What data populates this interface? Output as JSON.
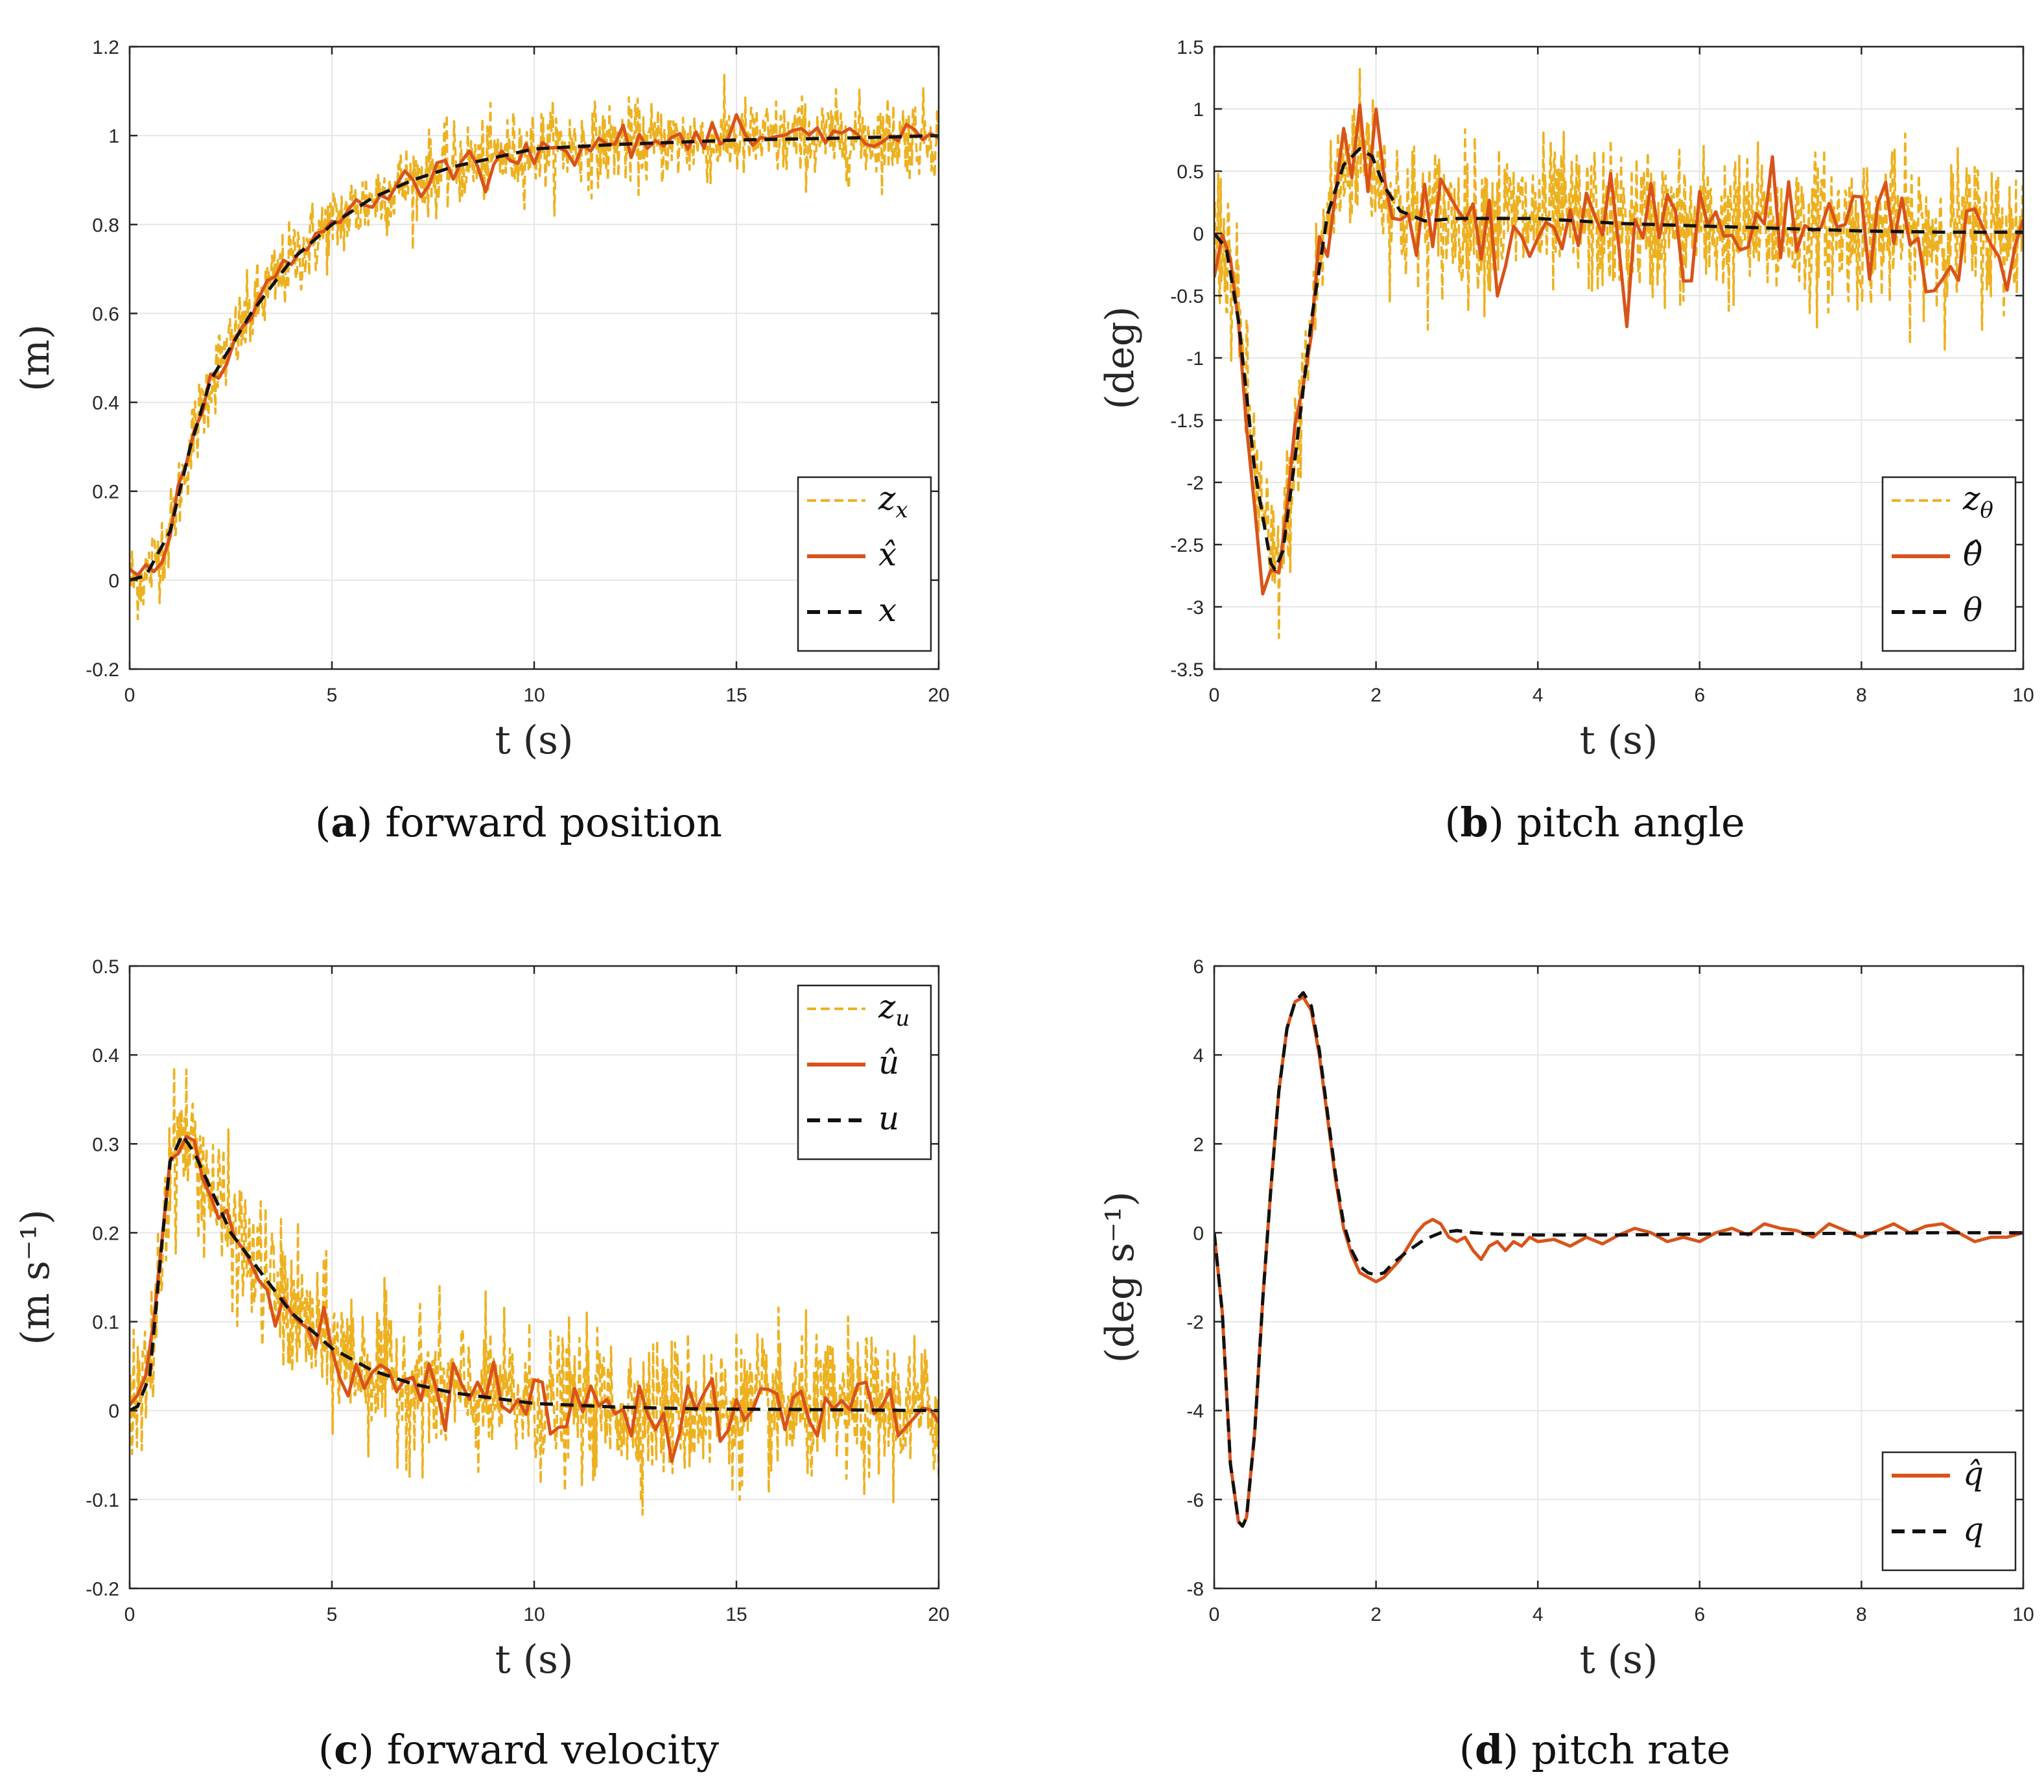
{
  "colors": {
    "measured": "#EDB120",
    "estimated": "#D95319",
    "true_state": "#111111",
    "grid": "#e6e6e6",
    "axes": "#262626"
  },
  "chart_data": [
    {
      "id": "a",
      "type": "line",
      "caption_letter": "a",
      "caption_text": "forward position",
      "xlabel": "t (s)",
      "ylabel": "(m)",
      "xlim": [
        0,
        20
      ],
      "ylim": [
        -0.2,
        1.2
      ],
      "xticks": [
        0,
        5,
        10,
        15,
        20
      ],
      "yticks": [
        -0.2,
        0,
        0.2,
        0.4,
        0.6,
        0.8,
        1,
        1.2
      ],
      "xtick_labels": [
        "0",
        "5",
        "10",
        "15",
        "20"
      ],
      "ytick_labels": [
        "-0.2",
        "0",
        "0.2",
        "0.4",
        "0.6",
        "0.8",
        "1",
        "1.2"
      ],
      "grid": true,
      "legend_position": "bottom-right",
      "legend": [
        "z_x",
        "x̂",
        "x"
      ],
      "legend_subscript": "x",
      "series": [
        {
          "name": "z_x",
          "style": "measured",
          "model": "x",
          "noise": 0.045,
          "dt": 0.02
        },
        {
          "name": "x̂",
          "style": "estimated",
          "model": "x",
          "noise": 0.018,
          "dt": 0.2
        },
        {
          "name": "x",
          "style": "true",
          "model": "x",
          "x": [
            0,
            0.4,
            1,
            1.5,
            2,
            3,
            4,
            5,
            6,
            7,
            8,
            10,
            12,
            15,
            18,
            20
          ],
          "values": [
            0,
            0.01,
            0.11,
            0.3,
            0.45,
            0.6,
            0.72,
            0.8,
            0.86,
            0.9,
            0.93,
            0.97,
            0.98,
            0.99,
            0.995,
            1.0
          ]
        }
      ]
    },
    {
      "id": "b",
      "type": "line",
      "caption_letter": "b",
      "caption_text": "pitch angle",
      "xlabel": "t (s)",
      "ylabel": "(deg)",
      "xlim": [
        0,
        10
      ],
      "ylim": [
        -3.5,
        1.5
      ],
      "xticks": [
        0,
        2,
        4,
        6,
        8,
        10
      ],
      "yticks": [
        -3.5,
        -3,
        -2.5,
        -2,
        -1.5,
        -1,
        -0.5,
        0,
        0.5,
        1,
        1.5
      ],
      "xtick_labels": [
        "0",
        "2",
        "4",
        "6",
        "8",
        "10"
      ],
      "ytick_labels": [
        "-3.5",
        "-3",
        "-2.5",
        "-2",
        "-1.5",
        "-1",
        "-0.5",
        "0",
        "0.5",
        "1",
        "1.5"
      ],
      "grid": true,
      "legend_position": "bottom-right",
      "legend": [
        "z_θ",
        "θ̂",
        "θ"
      ],
      "legend_subscript": "θ",
      "series": [
        {
          "name": "z_θ",
          "style": "measured",
          "model": "theta",
          "noise": 0.3,
          "dt": 0.01
        },
        {
          "name": "θ̂",
          "style": "estimated",
          "model": "theta",
          "noise": 0.22,
          "dt": 0.1
        },
        {
          "name": "θ",
          "style": "true",
          "x": [
            0,
            0.15,
            0.3,
            0.5,
            0.7,
            0.75,
            0.85,
            1.0,
            1.2,
            1.4,
            1.6,
            1.8,
            1.95,
            2.1,
            2.3,
            2.6,
            3,
            4,
            5,
            6,
            7,
            8,
            9,
            10
          ],
          "values": [
            0,
            -0.12,
            -0.7,
            -1.9,
            -2.65,
            -2.7,
            -2.55,
            -1.8,
            -0.7,
            0.15,
            0.55,
            0.68,
            0.62,
            0.38,
            0.18,
            0.1,
            0.12,
            0.12,
            0.08,
            0.06,
            0.04,
            0.02,
            0.01,
            0.01
          ]
        }
      ]
    },
    {
      "id": "c",
      "type": "line",
      "caption_letter": "c",
      "caption_text": "forward velocity",
      "xlabel": "t (s)",
      "ylabel": "(m s⁻¹)",
      "xlim": [
        0,
        20
      ],
      "ylim": [
        -0.2,
        0.5
      ],
      "xticks": [
        0,
        5,
        10,
        15,
        20
      ],
      "yticks": [
        -0.2,
        -0.1,
        0,
        0.1,
        0.2,
        0.3,
        0.4,
        0.5
      ],
      "xtick_labels": [
        "0",
        "5",
        "10",
        "15",
        "20"
      ],
      "ytick_labels": [
        "-0.2",
        "-0.1",
        "0",
        "0.1",
        "0.2",
        "0.3",
        "0.4",
        "0.5"
      ],
      "grid": true,
      "legend_position": "top-right",
      "legend": [
        "z_u",
        "û",
        "u"
      ],
      "legend_subscript": "u",
      "series": [
        {
          "name": "z_u",
          "style": "measured",
          "model": "u",
          "noise": 0.04,
          "dt": 0.02
        },
        {
          "name": "û",
          "style": "estimated",
          "model": "u",
          "noise": 0.018,
          "dt": 0.2
        },
        {
          "name": "u",
          "style": "true",
          "x": [
            0,
            0.2,
            0.5,
            0.8,
            1.0,
            1.3,
            1.6,
            2,
            2.5,
            3,
            4,
            5,
            6,
            7,
            8,
            10,
            12,
            14,
            17,
            20
          ],
          "values": [
            0,
            0.005,
            0.04,
            0.19,
            0.28,
            0.31,
            0.29,
            0.25,
            0.2,
            0.17,
            0.11,
            0.07,
            0.045,
            0.03,
            0.02,
            0.008,
            0.004,
            0.002,
            0.001,
            0
          ]
        }
      ]
    },
    {
      "id": "d",
      "type": "line",
      "caption_letter": "d",
      "caption_text": "pitch rate",
      "xlabel": "t (s)",
      "ylabel": "(deg s⁻¹)",
      "xlim": [
        0,
        10
      ],
      "ylim": [
        -8,
        6
      ],
      "xticks": [
        0,
        2,
        4,
        6,
        8,
        10
      ],
      "yticks": [
        -8,
        -6,
        -4,
        -2,
        0,
        2,
        4,
        6
      ],
      "xtick_labels": [
        "0",
        "2",
        "4",
        "6",
        "8",
        "10"
      ],
      "ytick_labels": [
        "-8",
        "-6",
        "-4",
        "-2",
        "0",
        "2",
        "4",
        "6"
      ],
      "grid": true,
      "legend_position": "bottom-right",
      "legend": [
        "q̂",
        "q"
      ],
      "legend_subscript": "",
      "series": [
        {
          "name": "q̂",
          "style": "estimated",
          "x": [
            0,
            0.1,
            0.2,
            0.3,
            0.35,
            0.4,
            0.5,
            0.6,
            0.7,
            0.8,
            0.9,
            1.0,
            1.1,
            1.2,
            1.3,
            1.4,
            1.5,
            1.6,
            1.7,
            1.8,
            1.9,
            2.0,
            2.1,
            2.2,
            2.3,
            2.4,
            2.5,
            2.6,
            2.7,
            2.8,
            2.9,
            3.0,
            3.1,
            3.2,
            3.3,
            3.4,
            3.5,
            3.6,
            3.7,
            3.8,
            3.9,
            4.0,
            4.2,
            4.4,
            4.6,
            4.8,
            5.0,
            5.2,
            5.4,
            5.6,
            5.8,
            6.0,
            6.2,
            6.4,
            6.6,
            6.8,
            7.0,
            7.2,
            7.4,
            7.6,
            7.8,
            8.0,
            8.2,
            8.4,
            8.6,
            8.8,
            9.0,
            9.2,
            9.4,
            9.6,
            9.8,
            10
          ],
          "values": [
            0,
            -1.8,
            -5.2,
            -6.5,
            -6.6,
            -6.4,
            -4.5,
            -1.5,
            1.0,
            3.2,
            4.6,
            5.2,
            5.3,
            5.0,
            4.0,
            2.6,
            1.2,
            0.1,
            -0.5,
            -0.9,
            -1.0,
            -1.1,
            -1.0,
            -0.8,
            -0.6,
            -0.3,
            0.0,
            0.2,
            0.3,
            0.2,
            -0.1,
            -0.2,
            -0.1,
            -0.4,
            -0.6,
            -0.3,
            -0.2,
            -0.4,
            -0.2,
            -0.3,
            -0.1,
            -0.2,
            -0.15,
            -0.3,
            -0.1,
            -0.25,
            -0.05,
            0.1,
            0.0,
            -0.2,
            -0.1,
            -0.2,
            0.0,
            0.1,
            -0.05,
            0.2,
            0.1,
            0.05,
            -0.1,
            0.2,
            0.05,
            -0.1,
            0.05,
            0.2,
            0.0,
            0.15,
            0.2,
            0.0,
            -0.2,
            -0.1,
            -0.1,
            0.0
          ]
        },
        {
          "name": "q",
          "style": "true",
          "x": [
            0,
            0.1,
            0.2,
            0.3,
            0.35,
            0.4,
            0.5,
            0.6,
            0.7,
            0.8,
            0.9,
            1.0,
            1.1,
            1.2,
            1.3,
            1.4,
            1.5,
            1.6,
            1.7,
            1.8,
            1.9,
            2.0,
            2.1,
            2.2,
            2.4,
            2.6,
            2.8,
            3.0,
            3.2,
            3.5,
            4,
            5,
            6,
            7,
            8,
            9,
            10
          ],
          "values": [
            0,
            -1.8,
            -5.2,
            -6.5,
            -6.6,
            -6.4,
            -4.5,
            -1.5,
            1.0,
            3.2,
            4.6,
            5.2,
            5.4,
            5.1,
            4.1,
            2.7,
            1.3,
            0.2,
            -0.4,
            -0.75,
            -0.9,
            -0.95,
            -0.9,
            -0.7,
            -0.4,
            -0.15,
            0.0,
            0.05,
            0.0,
            -0.03,
            -0.05,
            -0.05,
            -0.03,
            -0.02,
            -0.01,
            0.0,
            0.0
          ]
        }
      ]
    }
  ]
}
